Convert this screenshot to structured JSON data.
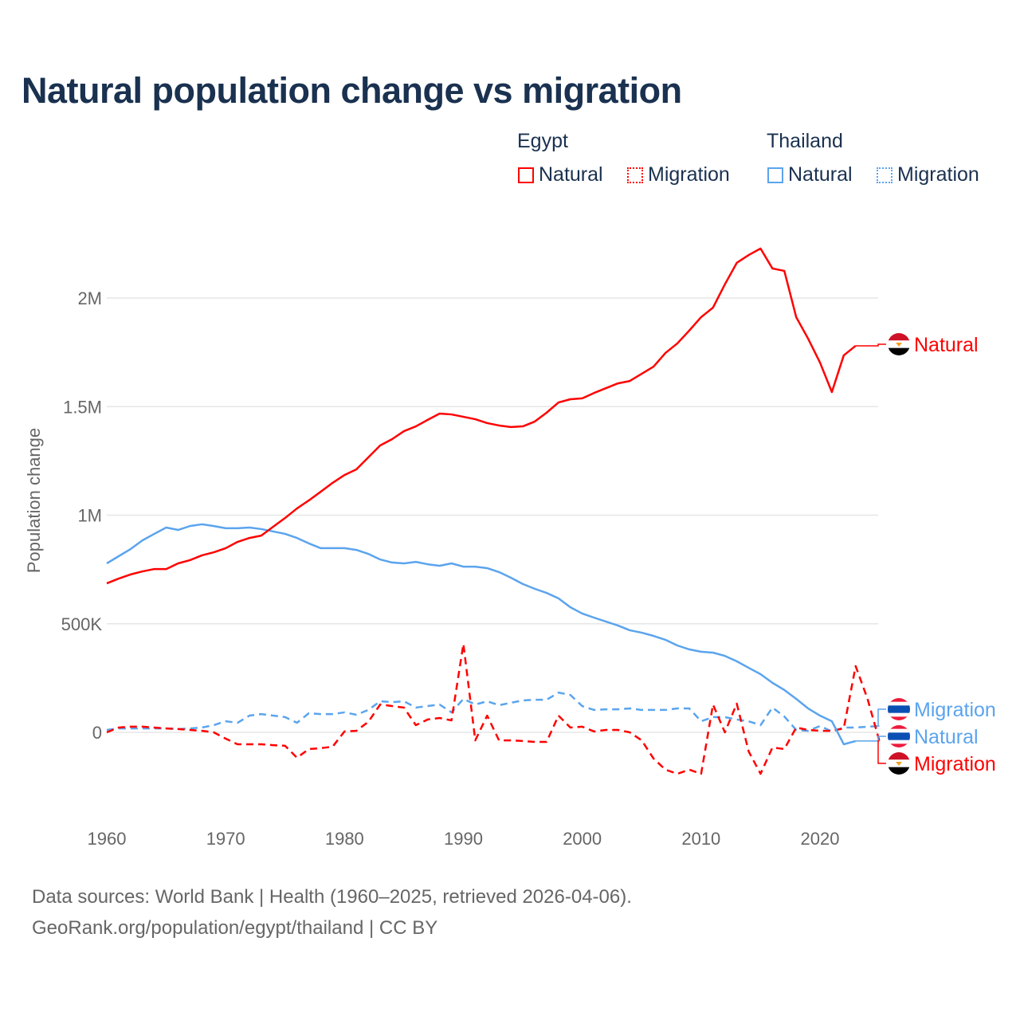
{
  "title": "Natural population change vs migration",
  "legend": {
    "groups": [
      {
        "name": "Egypt",
        "items": [
          {
            "label": "Natural",
            "style": "solid"
          },
          {
            "label": "Migration",
            "style": "dotted"
          }
        ],
        "color": "#ff0000"
      },
      {
        "name": "Thailand",
        "items": [
          {
            "label": "Natural",
            "style": "solid"
          },
          {
            "label": "Migration",
            "style": "dotted"
          }
        ],
        "color": "#5ba4ee"
      }
    ]
  },
  "footer": {
    "line1": "Data sources: World Bank | Health (1960–2025, retrieved 2026-04-06).",
    "line2": "GeoRank.org/population/egypt/thailand | CC BY"
  },
  "chart_data": {
    "type": "line",
    "title": "Natural population change vs migration",
    "xlabel": "",
    "ylabel": "Population change",
    "xlim": [
      1960,
      2025
    ],
    "ylim": [
      -300000,
      2300000
    ],
    "x_ticks": [
      1960,
      1970,
      1980,
      1990,
      2000,
      2010,
      2020
    ],
    "y_ticks": [
      {
        "value": 0,
        "label": "0"
      },
      {
        "value": 500000,
        "label": "500K"
      },
      {
        "value": 1000000,
        "label": "1M"
      },
      {
        "value": 1500000,
        "label": "1.5M"
      },
      {
        "value": 2000000,
        "label": "2M"
      }
    ],
    "grid": true,
    "legend_position": "top-right",
    "series": [
      {
        "name": "Egypt Natural",
        "label": "Natural",
        "country": "Egypt",
        "color": "#ff0000",
        "dash": "solid",
        "start_year": 1960,
        "values_k": [
          686,
          708,
          727,
          741,
          752,
          752,
          778,
          793,
          815,
          829,
          848,
          877,
          895,
          906,
          947,
          987,
          1031,
          1068,
          1108,
          1149,
          1185,
          1211,
          1266,
          1321,
          1350,
          1387,
          1409,
          1439,
          1468,
          1464,
          1453,
          1442,
          1424,
          1413,
          1406,
          1409,
          1431,
          1472,
          1519,
          1534,
          1538,
          1563,
          1585,
          1607,
          1618,
          1651,
          1684,
          1747,
          1791,
          1850,
          1912,
          1956,
          2063,
          2162,
          2198,
          2228,
          2136,
          2125,
          1912,
          1813,
          1703,
          1567,
          1736,
          1780
        ]
      },
      {
        "name": "Thailand Natural",
        "label": "Natural",
        "country": "Thailand",
        "color": "#5ba4ee",
        "dash": "solid",
        "start_year": 1960,
        "values_k": [
          778,
          811,
          844,
          884,
          914,
          943,
          932,
          950,
          958,
          950,
          940,
          940,
          943,
          936,
          925,
          914,
          895,
          870,
          848,
          848,
          848,
          840,
          822,
          796,
          782,
          778,
          785,
          774,
          767,
          778,
          763,
          763,
          756,
          738,
          712,
          683,
          661,
          642,
          617,
          576,
          547,
          528,
          510,
          492,
          470,
          459,
          444,
          426,
          400,
          382,
          371,
          367,
          352,
          327,
          297,
          268,
          228,
          195,
          154,
          110,
          77,
          51,
          -55,
          -40
        ]
      },
      {
        "name": "Egypt Migration",
        "label": "Migration",
        "country": "Egypt",
        "color": "#ff0000",
        "dash": "dashed",
        "start_year": 1960,
        "values_k": [
          0,
          22,
          26,
          26,
          22,
          18,
          15,
          11,
          7,
          0,
          -29,
          -55,
          -55,
          -55,
          -59,
          -62,
          -117,
          -77,
          -73,
          -66,
          4,
          7,
          48,
          128,
          121,
          114,
          33,
          59,
          66,
          55,
          407,
          -37,
          77,
          -37,
          -37,
          -40,
          -44,
          -44,
          77,
          22,
          26,
          4,
          11,
          11,
          0,
          -37,
          -121,
          -172,
          -191,
          -172,
          -191,
          128,
          0,
          132,
          -88,
          -191,
          -70,
          -77,
          22,
          11,
          7,
          7,
          18,
          305,
          154,
          -40
        ]
      },
      {
        "name": "Thailand Migration",
        "label": "Migration",
        "country": "Thailand",
        "color": "#5ba4ee",
        "dash": "dashed",
        "start_year": 1960,
        "values_k": [
          11,
          18,
          18,
          18,
          18,
          18,
          15,
          18,
          22,
          33,
          51,
          44,
          77,
          84,
          77,
          70,
          44,
          88,
          84,
          84,
          92,
          81,
          103,
          143,
          139,
          143,
          114,
          121,
          128,
          92,
          154,
          128,
          143,
          125,
          136,
          147,
          150,
          150,
          183,
          172,
          121,
          103,
          106,
          106,
          110,
          103,
          103,
          103,
          110,
          110,
          51,
          70,
          70,
          59,
          51,
          33,
          114,
          73,
          11,
          7,
          29,
          4,
          22,
          22,
          26,
          29
        ]
      }
    ]
  }
}
